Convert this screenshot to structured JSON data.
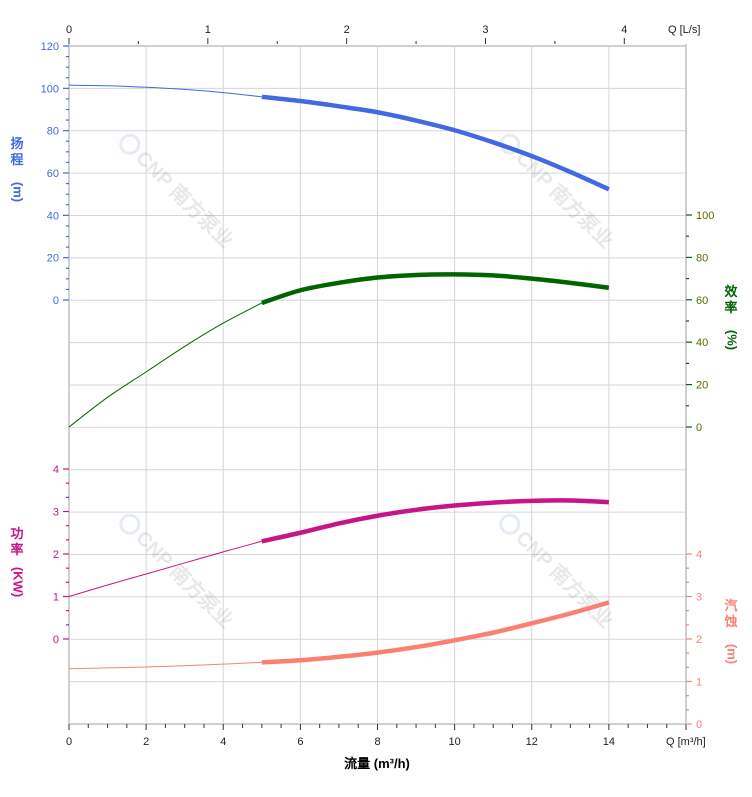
{
  "chart_data": {
    "type": "line",
    "x_axis": {
      "label": "流量 (m³/h)",
      "unit_label": "Q [m³/h]",
      "range": [
        0,
        16
      ],
      "ticks": [
        "0",
        "2",
        "4",
        "6",
        "8",
        "10",
        "12",
        "14"
      ]
    },
    "top_axis": {
      "unit_label": "Q [L/s]",
      "range": [
        0,
        4.444
      ],
      "ticks": [
        "0",
        "1",
        "2",
        "3",
        "4"
      ]
    },
    "grid": true,
    "watermark": "CNP 南方泵业",
    "series": [
      {
        "name": "扬程",
        "unit": "(m)",
        "axis": "left-top",
        "color": "#4169e1",
        "label_color": "#4169e1",
        "range": [
          0,
          120
        ],
        "ticks": [
          "0",
          "20",
          "40",
          "60",
          "80",
          "100",
          "120"
        ],
        "x": [
          0,
          1,
          2,
          3,
          4,
          5,
          6,
          7,
          8,
          9,
          10,
          11,
          12,
          13,
          14
        ],
        "y": [
          101.5,
          101.2,
          100.5,
          99.5,
          98,
          96,
          94,
          91.5,
          88.7,
          84.8,
          80.2,
          74.5,
          68,
          60.5,
          52.3
        ],
        "operating_start": 5
      },
      {
        "name": "效率",
        "unit": "(%)",
        "axis": "right-top",
        "color": "#006400",
        "label_color": "#556b00",
        "range": [
          0,
          100
        ],
        "ticks": [
          "0",
          "20",
          "40",
          "60",
          "80",
          "100"
        ],
        "x": [
          0,
          1,
          2,
          3,
          4,
          5,
          6,
          7,
          8,
          9,
          10,
          11,
          12,
          13,
          14
        ],
        "y": [
          0,
          14,
          26,
          38,
          49,
          58.5,
          64.5,
          68,
          70.5,
          71.7,
          72,
          71.5,
          70,
          68,
          65.7
        ],
        "operating_start": 5
      },
      {
        "name": "功率",
        "unit": "(KW)",
        "axis": "left-bottom",
        "color": "#c71585",
        "label_color": "#c71585",
        "range": [
          0,
          4
        ],
        "ticks": [
          "0",
          "1",
          "2",
          "3",
          "4"
        ],
        "x": [
          0,
          1,
          2,
          3,
          4,
          5,
          6,
          7,
          8,
          9,
          10,
          11,
          12,
          13,
          14
        ],
        "y": [
          1.0,
          1.27,
          1.53,
          1.79,
          2.05,
          2.3,
          2.5,
          2.72,
          2.9,
          3.04,
          3.14,
          3.21,
          3.25,
          3.26,
          3.22
        ],
        "operating_start": 5
      },
      {
        "name": "汽蚀",
        "unit": "(m)",
        "axis": "right-bottom",
        "color": "#fa8072",
        "label_color": "#fa8072",
        "range": [
          0,
          4
        ],
        "ticks": [
          "0",
          "1",
          "2",
          "3",
          "4"
        ],
        "x": [
          0,
          1,
          2,
          3,
          4,
          5,
          6,
          7,
          8,
          9,
          10,
          11,
          12,
          13,
          14
        ],
        "y": [
          1.3,
          1.32,
          1.34,
          1.37,
          1.41,
          1.45,
          1.5,
          1.58,
          1.68,
          1.81,
          1.97,
          2.15,
          2.37,
          2.6,
          2.86
        ],
        "operating_start": 5
      }
    ]
  }
}
